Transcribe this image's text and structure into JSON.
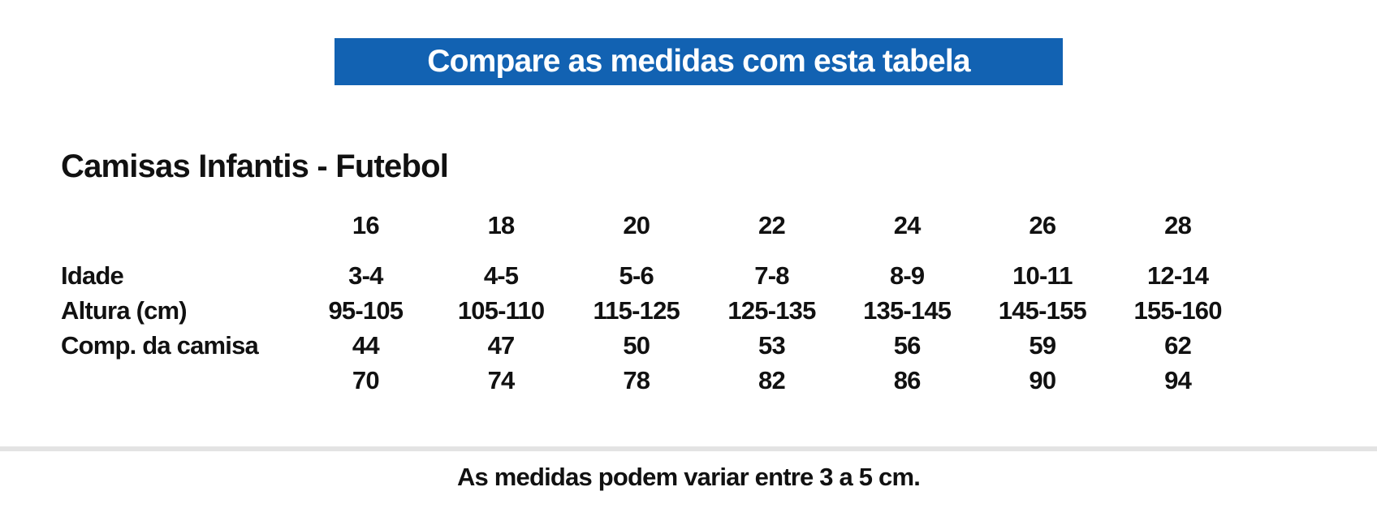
{
  "banner": {
    "title": "Compare as medidas com esta tabela"
  },
  "colors": {
    "banner_bg": "#1262b2",
    "banner_text": "#ffffff",
    "body_text": "#111111",
    "divider": "#e3e3e3"
  },
  "chart_data": {
    "type": "table",
    "title": "Camisas Infantis - Futebol",
    "columns": [
      "",
      "16",
      "18",
      "20",
      "22",
      "24",
      "26",
      "28"
    ],
    "rows": [
      [
        "Idade",
        "3-4",
        "4-5",
        "5-6",
        "7-8",
        "8-9",
        "10-11",
        "12-14"
      ],
      [
        "Altura (cm)",
        "95-105",
        "105-110",
        "115-125",
        "125-135",
        "135-145",
        "145-155",
        "155-160"
      ],
      [
        "Comp. da camisa",
        "44",
        "47",
        "50",
        "53",
        "56",
        "59",
        "62"
      ],
      [
        "",
        "70",
        "74",
        "78",
        "82",
        "86",
        "90",
        "94"
      ]
    ],
    "layout": {
      "grid": false,
      "header_row_bold": true,
      "all_cells_bold": true
    }
  },
  "footer": {
    "note": "As medidas podem variar entre 3 a 5 cm."
  }
}
